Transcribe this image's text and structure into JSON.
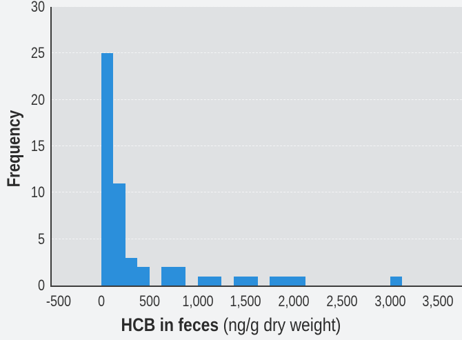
{
  "chart_data": {
    "type": "bar",
    "title": "",
    "xlabel_bold": "HCB in feces",
    "xlabel_unit": "(ng/g dry weight)",
    "xlabel": "HCB in feces (ng/g dry weight)",
    "ylabel": "Frequency",
    "xlim": [
      -500,
      3700
    ],
    "ylim": [
      0,
      30
    ],
    "grid": true,
    "bar_color": "#2b8fdb",
    "plot_background": "#dfe1e3",
    "x_ticks": [
      -500,
      0,
      500,
      1000,
      1500,
      2000,
      2500,
      3000,
      3500
    ],
    "x_tick_labels": [
      "-500",
      "0",
      "500",
      "1,000",
      "1,500",
      "2,000",
      "2,500",
      "3,000",
      "3,500"
    ],
    "y_ticks": [
      0,
      5,
      10,
      15,
      20,
      25,
      30
    ],
    "y_tick_labels": [
      "0",
      "5",
      "10",
      "15",
      "20",
      "25",
      "30"
    ],
    "bin_width": 125,
    "bins": [
      {
        "start": 0,
        "end": 125,
        "count": 25
      },
      {
        "start": 125,
        "end": 250,
        "count": 11
      },
      {
        "start": 250,
        "end": 375,
        "count": 3
      },
      {
        "start": 375,
        "end": 500,
        "count": 2
      },
      {
        "start": 625,
        "end": 750,
        "count": 2
      },
      {
        "start": 750,
        "end": 875,
        "count": 2
      },
      {
        "start": 1000,
        "end": 1125,
        "count": 1
      },
      {
        "start": 1125,
        "end": 1250,
        "count": 1
      },
      {
        "start": 1375,
        "end": 1500,
        "count": 1
      },
      {
        "start": 1500,
        "end": 1625,
        "count": 1
      },
      {
        "start": 1750,
        "end": 1875,
        "count": 1
      },
      {
        "start": 1875,
        "end": 2000,
        "count": 1
      },
      {
        "start": 2000,
        "end": 2125,
        "count": 1
      },
      {
        "start": 3000,
        "end": 3125,
        "count": 1
      }
    ]
  }
}
